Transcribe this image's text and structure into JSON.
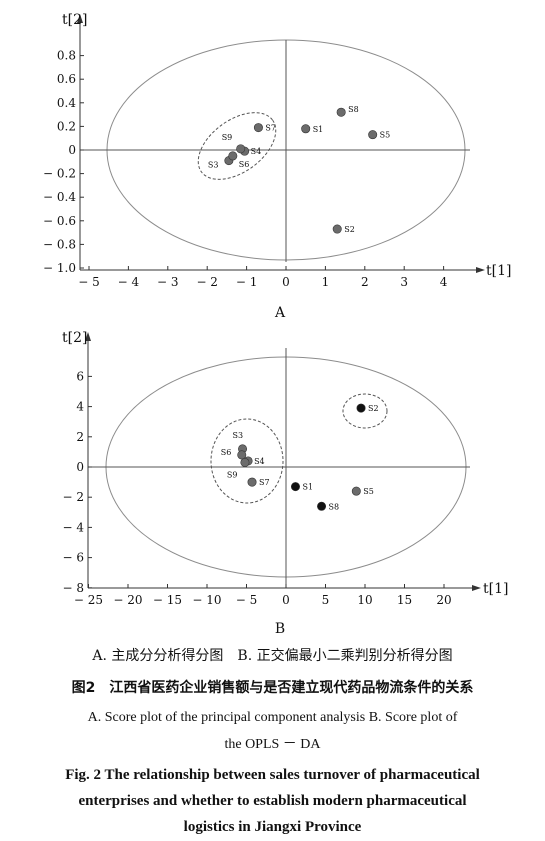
{
  "chart_data": [
    {
      "type": "scatter",
      "panel_label": "A",
      "xlabel": "t[1]",
      "ylabel": "t[2]",
      "xlim": [
        -5,
        4.8
      ],
      "ylim": [
        -1.0,
        1.0
      ],
      "xticks": [
        -5,
        -4,
        -3,
        -2,
        -1,
        0,
        1,
        2,
        3,
        4
      ],
      "xtick_labels": [
        "− 5",
        "− 4",
        "− 3",
        "− 2",
        "− 1",
        "0",
        "1",
        "2",
        "3",
        "4"
      ],
      "yticks": [
        0.8,
        0.6,
        0.4,
        0.2,
        0,
        -0.2,
        -0.4,
        -0.6,
        -0.8,
        -1.0
      ],
      "ytick_labels": [
        "0.8",
        "0.6",
        "0.4",
        "0.2",
        "0",
        "− 0.2",
        "− 0.4",
        "− 0.6",
        "− 0.8",
        "− 1.0"
      ],
      "points": [
        {
          "label": "S1",
          "x": 0.5,
          "y": 0.18,
          "color": "#6b6b6b"
        },
        {
          "label": "S2",
          "x": 1.3,
          "y": -0.67,
          "color": "#6b6b6b"
        },
        {
          "label": "S3",
          "x": -1.45,
          "y": -0.09,
          "color": "#6b6b6b"
        },
        {
          "label": "S4",
          "x": -1.05,
          "y": -0.01,
          "color": "#6b6b6b"
        },
        {
          "label": "S5",
          "x": 2.2,
          "y": 0.13,
          "color": "#6b6b6b"
        },
        {
          "label": "S6",
          "x": -1.35,
          "y": -0.05,
          "color": "#6b6b6b"
        },
        {
          "label": "S7",
          "x": -0.7,
          "y": 0.19,
          "color": "#6b6b6b"
        },
        {
          "label": "S8",
          "x": 1.4,
          "y": 0.32,
          "color": "#6b6b6b"
        },
        {
          "label": "S9",
          "x": -1.15,
          "y": 0.01,
          "color": "#6b6b6b"
        }
      ],
      "label_offsets": {
        "S1": [
          7,
          0
        ],
        "S2": [
          7,
          0
        ],
        "S3": [
          -21,
          4
        ],
        "S4": [
          6,
          0
        ],
        "S5": [
          7,
          0
        ],
        "S6": [
          6,
          8
        ],
        "S7": [
          7,
          0
        ],
        "S8": [
          7,
          -3
        ],
        "S9": [
          -19,
          -12
        ]
      }
    },
    {
      "type": "scatter",
      "panel_label": "B",
      "xlabel": "t[1]",
      "ylabel": "t[2]",
      "xlim": [
        -25,
        24
      ],
      "ylim": [
        -8,
        7.5
      ],
      "xticks": [
        -25,
        -20,
        -15,
        -10,
        -5,
        0,
        5,
        10,
        15,
        20
      ],
      "xtick_labels": [
        "− 25",
        "− 20",
        "− 15",
        "− 10",
        "− 5",
        "0",
        "5",
        "10",
        "15",
        "20"
      ],
      "yticks": [
        6,
        4,
        2,
        0,
        -2,
        -4,
        -6,
        -8
      ],
      "ytick_labels": [
        "6",
        "4",
        "2",
        "0",
        "− 2",
        "− 4",
        "− 6",
        "− 8"
      ],
      "points": [
        {
          "label": "S1",
          "x": 1.2,
          "y": -1.3,
          "color": "#111111"
        },
        {
          "label": "S2",
          "x": 9.5,
          "y": 3.9,
          "color": "#111111"
        },
        {
          "label": "S3",
          "x": -5.5,
          "y": 1.2,
          "color": "#6b6b6b"
        },
        {
          "label": "S4",
          "x": -4.8,
          "y": 0.4,
          "color": "#6b6b6b"
        },
        {
          "label": "S5",
          "x": 8.9,
          "y": -1.6,
          "color": "#6b6b6b"
        },
        {
          "label": "S6",
          "x": -5.6,
          "y": 0.8,
          "color": "#6b6b6b"
        },
        {
          "label": "S7",
          "x": -4.3,
          "y": -1.0,
          "color": "#6b6b6b"
        },
        {
          "label": "S8",
          "x": 4.5,
          "y": -2.6,
          "color": "#111111"
        },
        {
          "label": "S9",
          "x": -5.2,
          "y": 0.3,
          "color": "#6b6b6b"
        }
      ],
      "label_offsets": {
        "S1": [
          7,
          0
        ],
        "S2": [
          7,
          0
        ],
        "S3": [
          -10,
          -14
        ],
        "S4": [
          6,
          0
        ],
        "S5": [
          7,
          0
        ],
        "S6": [
          -21,
          -3
        ],
        "S7": [
          7,
          0
        ],
        "S8": [
          7,
          0
        ],
        "S9": [
          -18,
          12
        ]
      }
    }
  ],
  "captions": {
    "subcaption_a": "A. 主成分分析得分图",
    "subcaption_b": "B. 正交偏最小二乘判别分析得分图",
    "title_cn_num": "图2",
    "title_cn": "江西省医药企业销售额与是否建立现代药品物流条件的关系",
    "desc_en_1": "A.  Score plot of the principal component analysis    B. Score plot of",
    "desc_en_2": "the OPLS － DA",
    "title_en_1": "Fig. 2   The relationship between sales turnover of pharmaceutical",
    "title_en_2": "enterprises and whether to establish modern pharmaceutical",
    "title_en_3": "logistics in Jiangxi Province"
  }
}
